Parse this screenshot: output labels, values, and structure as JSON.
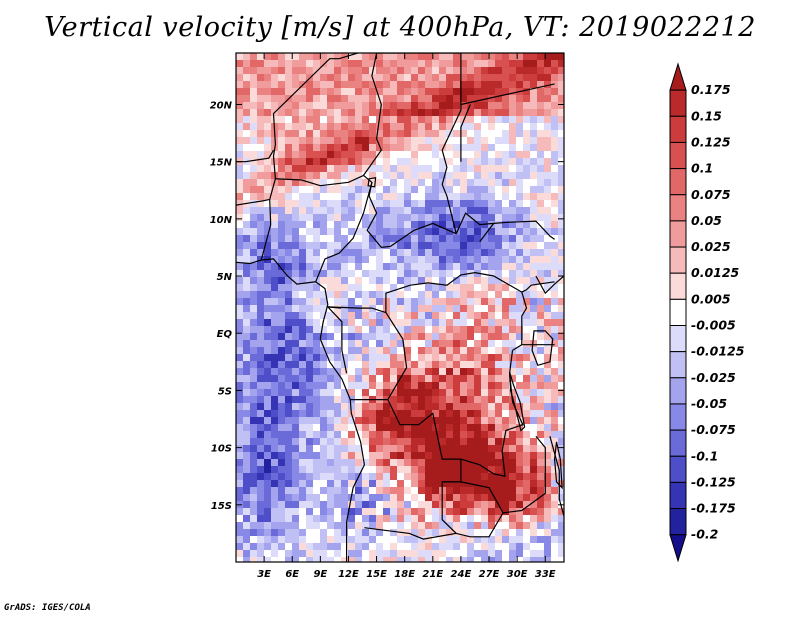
{
  "title": "Vertical velocity [m/s] at 400hPa, VT: 2019022212",
  "credit": "GrADS: IGES/COLA",
  "colors": {
    "strong_down": "#1a0a8c",
    "neutral": "#ffffff",
    "strong_up": "#9e1818",
    "boundary": "#000000"
  },
  "chart_data": {
    "type": "heatmap",
    "title": "Vertical velocity [m/s] at 400hPa, VT: 2019022212",
    "variable": "Vertical velocity",
    "units": "m/s",
    "level": "400hPa",
    "valid_time": "2019022212",
    "x_range": [
      0,
      35
    ],
    "y_range": [
      -20,
      24.5
    ],
    "x_ticks": [
      {
        "value": 3,
        "label": "3E"
      },
      {
        "value": 6,
        "label": "6E"
      },
      {
        "value": 9,
        "label": "9E"
      },
      {
        "value": 12,
        "label": "12E"
      },
      {
        "value": 15,
        "label": "15E"
      },
      {
        "value": 18,
        "label": "18E"
      },
      {
        "value": 21,
        "label": "21E"
      },
      {
        "value": 24,
        "label": "24E"
      },
      {
        "value": 27,
        "label": "27E"
      },
      {
        "value": 30,
        "label": "30E"
      },
      {
        "value": 33,
        "label": "33E"
      }
    ],
    "y_ticks": [
      {
        "value": 20,
        "label": "20N"
      },
      {
        "value": 15,
        "label": "15N"
      },
      {
        "value": 10,
        "label": "10N"
      },
      {
        "value": 5,
        "label": "5N"
      },
      {
        "value": 0,
        "label": "EQ"
      },
      {
        "value": -5,
        "label": "5S"
      },
      {
        "value": -10,
        "label": "10S"
      },
      {
        "value": -15,
        "label": "15S"
      }
    ],
    "colorbar": {
      "labels": [
        "0.175",
        "0.15",
        "0.125",
        "0.1",
        "0.075",
        "0.05",
        "0.025",
        "0.0125",
        "0.005",
        "-0.005",
        "-0.0125",
        "-0.025",
        "-0.05",
        "-0.075",
        "-0.1",
        "-0.125",
        "-0.175",
        "-0.2"
      ],
      "colors": [
        "#a61c1c",
        "#bb2a2a",
        "#cc3c3c",
        "#d95050",
        "#e26868",
        "#ea8282",
        "#f09c9c",
        "#f6baba",
        "#fbdada",
        "#ffffff",
        "#dcdcfa",
        "#c0c0f4",
        "#a4a4ee",
        "#8888e6",
        "#6a6ad8",
        "#4e4ec8",
        "#3434b4",
        "#22229e",
        "#140e8a"
      ]
    }
  }
}
